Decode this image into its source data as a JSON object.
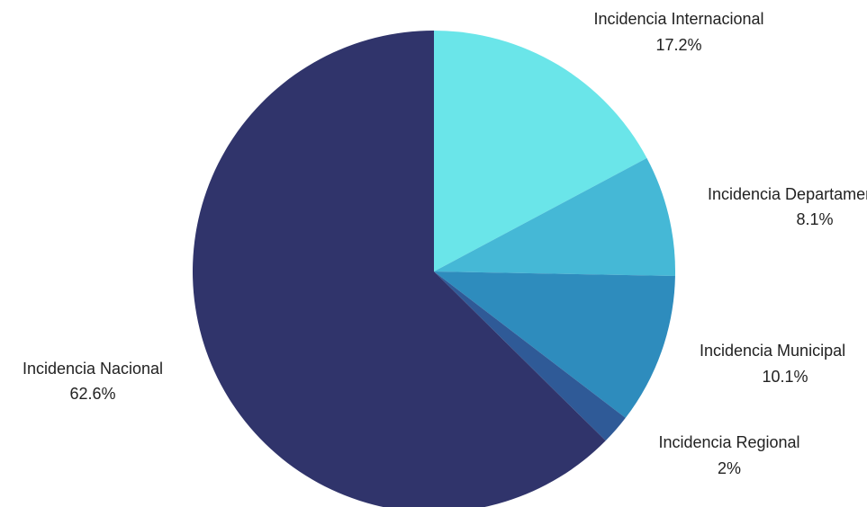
{
  "chart_data": {
    "type": "pie",
    "title": "",
    "start_angle_deg": 0,
    "direction": "clockwise",
    "slices": [
      {
        "name": "Incidencia Internacional",
        "value": 17.2,
        "label": "17.2%",
        "color": "#6AE5E9"
      },
      {
        "name": "Incidencia Departamental",
        "value": 8.1,
        "label": "8.1%",
        "color": "#45B8D6"
      },
      {
        "name": "Incidencia Municipal",
        "value": 10.1,
        "label": "10.1%",
        "color": "#2E8CBD"
      },
      {
        "name": "Incidencia Regional",
        "value": 2.0,
        "label": "2%",
        "color": "#2F5A97"
      },
      {
        "name": "Incidencia Nacional",
        "value": 62.6,
        "label": "62.6%",
        "color": "#30346B"
      }
    ]
  }
}
